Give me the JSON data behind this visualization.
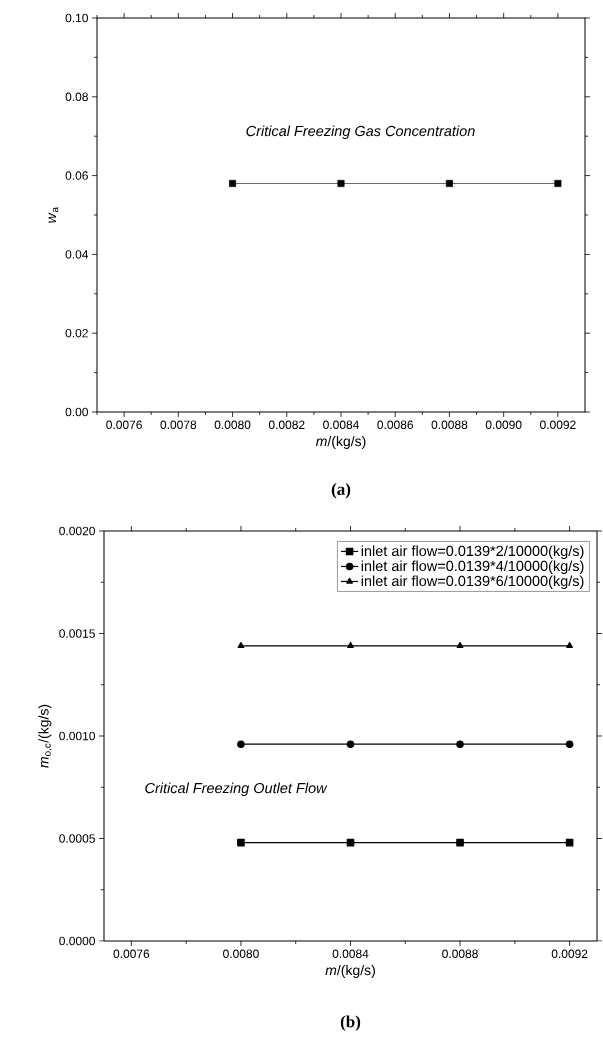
{
  "chart_data": [
    {
      "type": "line",
      "title": "(a)",
      "xlabel": "*m*/(kg/s)",
      "ylabel": "*w*$_{a}$",
      "annotations": [
        "Critical Freezing Gas Concentration"
      ],
      "x": [
        0.008,
        0.0084,
        0.0088,
        0.0092
      ],
      "series": [
        {
          "color": "#000000",
          "marker": "square",
          "values": [
            0.058,
            0.058,
            0.058,
            0.058
          ]
        }
      ],
      "xlim": [
        0.0075,
        0.0093
      ],
      "xticks": [
        {
          "value": 0.0075,
          "label": null
        },
        {
          "value": 0.0076,
          "label": "0.0076"
        },
        {
          "value": 0.0077,
          "label": null
        },
        {
          "value": 0.0078,
          "label": "0.0078"
        },
        {
          "value": 0.0079,
          "label": null
        },
        {
          "value": 0.008,
          "label": "0.0080"
        },
        {
          "value": 0.0081,
          "label": null
        },
        {
          "value": 0.0082,
          "label": "0.0082"
        },
        {
          "value": 0.0083,
          "label": null
        },
        {
          "value": 0.0084,
          "label": "0.0084"
        },
        {
          "value": 0.0085,
          "label": null
        },
        {
          "value": 0.0086,
          "label": "0.0086"
        },
        {
          "value": 0.0087,
          "label": null
        },
        {
          "value": 0.0088,
          "label": "0.0088"
        },
        {
          "value": 0.0089,
          "label": null
        },
        {
          "value": 0.009,
          "label": "0.0090"
        },
        {
          "value": 0.0091,
          "label": null
        },
        {
          "value": 0.0092,
          "label": "0.0092"
        }
      ],
      "ylim": [
        0,
        0.1
      ],
      "yticks": [
        {
          "value": 0,
          "label": "0.00"
        },
        {
          "value": 0.01,
          "label": null
        },
        {
          "value": 0.02,
          "label": "0.02"
        },
        {
          "value": 0.03,
          "label": null
        },
        {
          "value": 0.04,
          "label": "0.04"
        },
        {
          "value": 0.05,
          "label": null
        },
        {
          "value": 0.06,
          "label": "0.06"
        },
        {
          "value": 0.07,
          "label": null
        },
        {
          "value": 0.08,
          "label": "0.08"
        },
        {
          "value": 0.09,
          "label": null
        },
        {
          "value": 0.1,
          "label": "0.10"
        }
      ],
      "legend": false
    },
    {
      "type": "line",
      "title": "(b)",
      "xlabel": "*m*/(kg/s)",
      "ylabel": "*m*$_{o,c}$/(kg/s)",
      "annotations": [
        "Critical Freezing Outlet Flow"
      ],
      "x": [
        0.008,
        0.0084,
        0.0088,
        0.0092
      ],
      "series": [
        {
          "name": "inlet air flow=0.0139*2/10000(kg/s)",
          "color": "#000000",
          "marker": "square",
          "values": [
            0.00048,
            0.00048,
            0.00048,
            0.00048
          ]
        },
        {
          "name": "inlet air flow=0.0139*4/10000(kg/s)",
          "color": "#000000",
          "marker": "circle",
          "values": [
            0.00096,
            0.00096,
            0.00096,
            0.00096
          ]
        },
        {
          "name": "inlet air flow=0.0139*6/10000(kg/s)",
          "color": "#000000",
          "marker": "triangle",
          "values": [
            0.00144,
            0.00144,
            0.00144,
            0.00144
          ]
        }
      ],
      "xlim": [
        0.0075,
        0.0093
      ],
      "xticks": [
        {
          "value": 0.0076,
          "label": "0.0076"
        },
        {
          "value": 0.0078,
          "label": null
        },
        {
          "value": 0.008,
          "label": "0.0080"
        },
        {
          "value": 0.0082,
          "label": null
        },
        {
          "value": 0.0084,
          "label": "0.0084"
        },
        {
          "value": 0.0086,
          "label": null
        },
        {
          "value": 0.0088,
          "label": "0.0088"
        },
        {
          "value": 0.009,
          "label": null
        },
        {
          "value": 0.0092,
          "label": "0.0092"
        }
      ],
      "ylim": [
        0,
        0.002
      ],
      "yticks": [
        {
          "value": 0,
          "label": "0.0000"
        },
        {
          "value": 0.00025,
          "label": null
        },
        {
          "value": 0.0005,
          "label": "0.0005"
        },
        {
          "value": 0.00075,
          "label": null
        },
        {
          "value": 0.001,
          "label": "0.0010"
        },
        {
          "value": 0.00125,
          "label": null
        },
        {
          "value": 0.0015,
          "label": "0.0015"
        },
        {
          "value": 0.00175,
          "label": null
        },
        {
          "value": 0.002,
          "label": "0.0020"
        }
      ],
      "legend": "top right"
    }
  ]
}
